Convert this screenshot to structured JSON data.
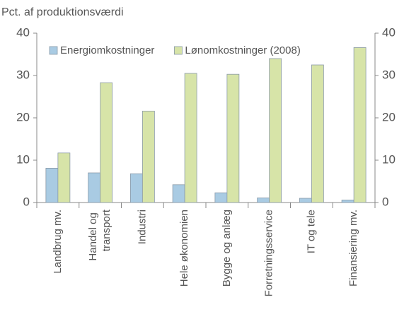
{
  "chart_data": {
    "type": "bar",
    "title": "Pct. af produktionsværdi",
    "categories": [
      "Landbrug mv.",
      "Handel og transport",
      "Industri",
      "Hele økonomien",
      "Bygge og anlæg",
      "Forretningsservice",
      "IT og tele",
      "Finansiering mv."
    ],
    "series": [
      {
        "name": "Energiomkostninger",
        "color": "#a9cbe3",
        "values": [
          8.1,
          7.0,
          6.8,
          4.2,
          2.3,
          1.1,
          1.0,
          0.6
        ]
      },
      {
        "name": "Lønomkostninger (2008)",
        "color": "#d7e4a8",
        "values": [
          11.7,
          28.3,
          21.6,
          30.5,
          30.3,
          34.0,
          32.5,
          36.6
        ]
      }
    ],
    "ylim": [
      0,
      40
    ],
    "yticks": [
      0,
      10,
      20,
      30,
      40
    ],
    "y2lim": [
      0,
      40
    ],
    "y2ticks": [
      0,
      10,
      20,
      30,
      40
    ],
    "legend": "top",
    "grid": false
  }
}
